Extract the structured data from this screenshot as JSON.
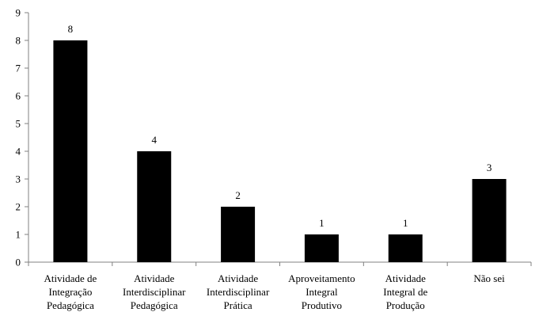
{
  "chart_data": {
    "type": "bar",
    "categories": [
      [
        "Atividade de",
        "Integração",
        "Pedagógica"
      ],
      [
        "Atividade",
        "Interdisciplinar",
        "Pedagógica"
      ],
      [
        "Atividade",
        "Interdisciplinar",
        "Prática"
      ],
      [
        "Aproveitamento",
        "Integral",
        "Produtivo"
      ],
      [
        "Atividade",
        "Integral de",
        "Produção"
      ],
      [
        "Não sei"
      ]
    ],
    "values": [
      8,
      4,
      2,
      1,
      1,
      3
    ],
    "ylim": [
      0,
      9
    ],
    "yticks": [
      0,
      1,
      2,
      3,
      4,
      5,
      6,
      7,
      8,
      9
    ],
    "grid": false,
    "legend": "none",
    "bar_color": "#000000",
    "axis_color": "#808080"
  }
}
